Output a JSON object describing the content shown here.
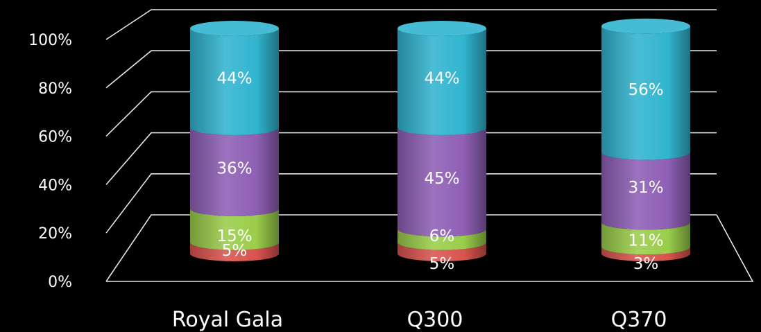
{
  "chart_data": {
    "type": "bar",
    "stacked": true,
    "percent": true,
    "categories": [
      "Royal Gala",
      "Q300",
      "Q370"
    ],
    "series": [
      {
        "values": [
          5,
          5,
          3
        ],
        "color": "#d9534f"
      },
      {
        "values": [
          15,
          6,
          11
        ],
        "color": "#9acd4a"
      },
      {
        "values": [
          36,
          45,
          31
        ],
        "color": "#8e5fb5"
      },
      {
        "values": [
          44,
          44,
          56
        ],
        "color": "#31b4cf"
      }
    ],
    "data_labels": [
      [
        "5%",
        "15%",
        "36%",
        "44%"
      ],
      [
        "5%",
        "6%",
        "45%",
        "44%"
      ],
      [
        "3%",
        "11%",
        "31%",
        "56%"
      ]
    ],
    "y_ticks": [
      "0%",
      "20%",
      "40%",
      "60%",
      "80%",
      "100%"
    ],
    "ylim": [
      0,
      100
    ],
    "grid": true,
    "legend": "none",
    "style": "3d cylinder"
  }
}
